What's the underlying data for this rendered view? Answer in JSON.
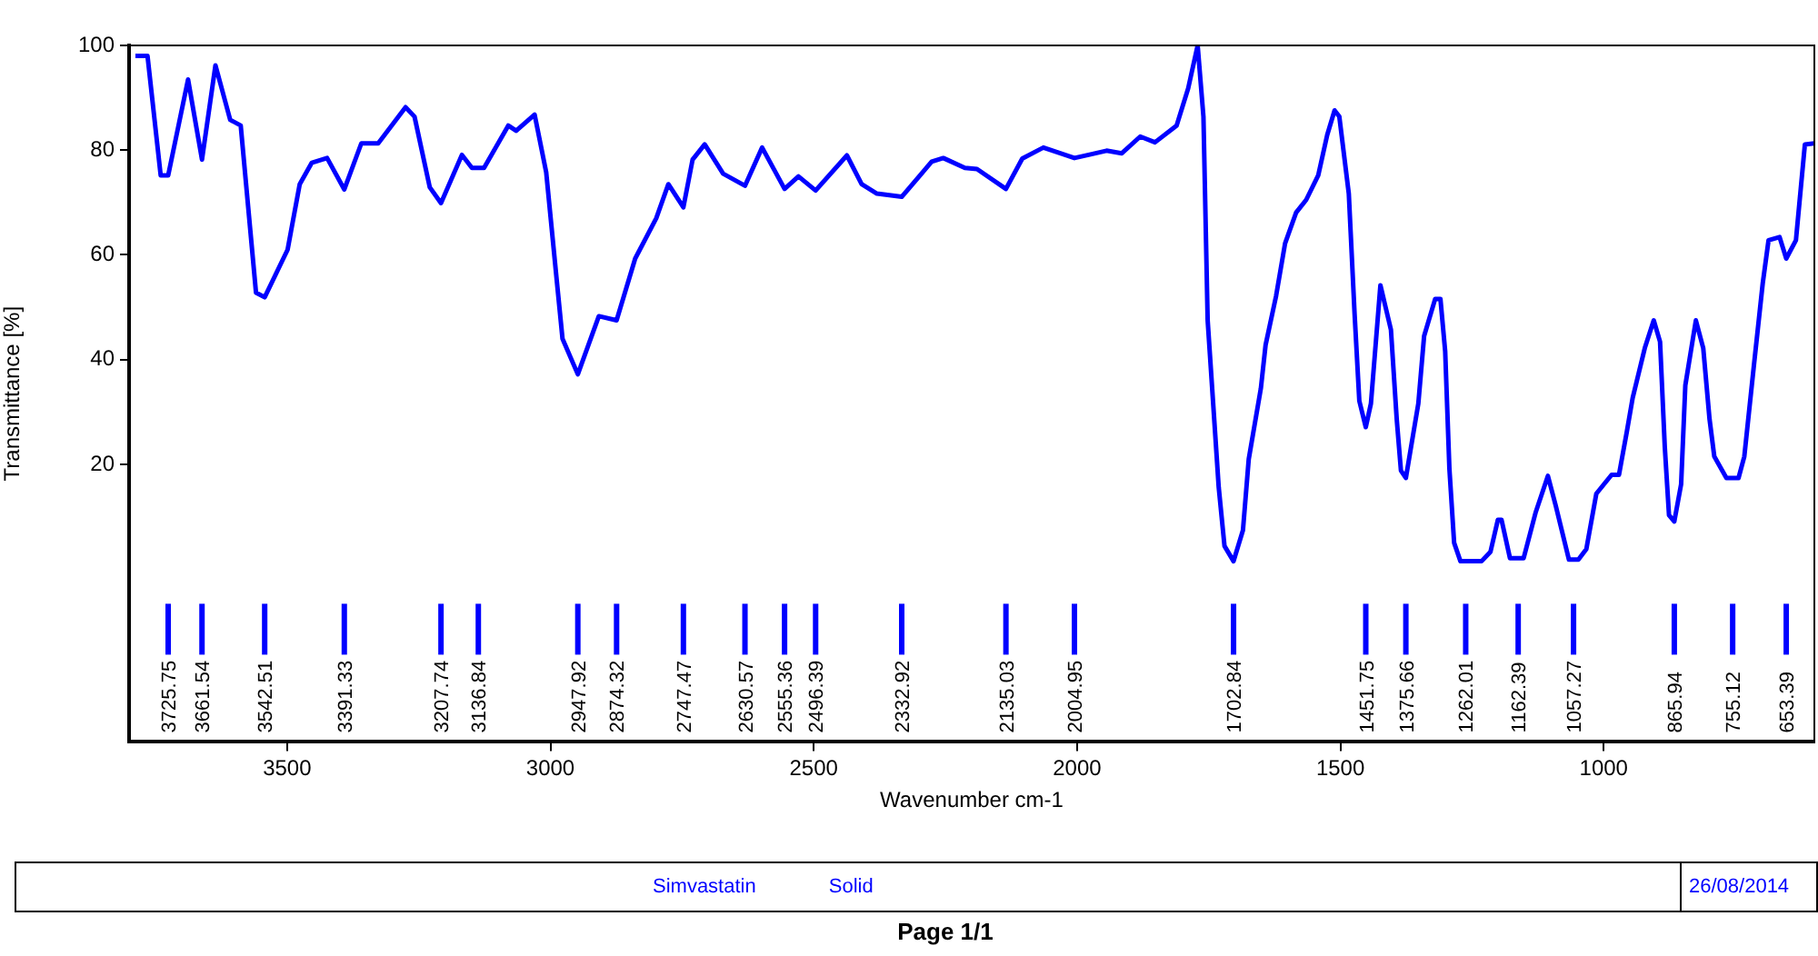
{
  "chart_data": {
    "type": "line",
    "xlabel": "Wavenumber cm-1",
    "ylabel": "Transmittance [%]",
    "xlim": [
      3800,
      600
    ],
    "ylim": [
      -33,
      100
    ],
    "xticks": [
      3500,
      3000,
      2500,
      2000,
      1500,
      1000
    ],
    "yticks": [
      20,
      40,
      60,
      80,
      100
    ],
    "grid": false,
    "legend": false,
    "marker": "none",
    "line_style": "solid",
    "series": [
      {
        "color": "#0000ff",
        "x": [
          3788,
          3765,
          3740,
          3725.75,
          3688,
          3661.54,
          3636,
          3608,
          3588,
          3559,
          3542.51,
          3499,
          3476,
          3453,
          3424,
          3391.33,
          3359,
          3327,
          3275,
          3258,
          3229,
          3207.74,
          3168,
          3149,
          3136.84,
          3126,
          3080,
          3065,
          3030,
          3008,
          2988,
          2977,
          2947.92,
          2908,
          2874.32,
          2839,
          2799,
          2776,
          2747.47,
          2730,
          2707,
          2672,
          2630.57,
          2598,
          2555.36,
          2529,
          2496.39,
          2437,
          2409,
          2380,
          2332.92,
          2276,
          2254,
          2213,
          2190,
          2135.03,
          2104,
          2064,
          2004.95,
          1978,
          1944,
          1915,
          1880,
          1852,
          1811,
          1789,
          1771,
          1760,
          1752,
          1731,
          1720,
          1702.84,
          1685,
          1674,
          1651,
          1642,
          1622,
          1605,
          1584,
          1565,
          1542,
          1525,
          1511,
          1502,
          1484,
          1473,
          1464,
          1451.75,
          1442,
          1424,
          1404,
          1393,
          1385,
          1375.66,
          1352,
          1341,
          1320,
          1310,
          1301,
          1293,
          1284,
          1272,
          1262.01,
          1232,
          1215,
          1201,
          1194,
          1178,
          1162.39,
          1152,
          1129,
          1106,
          1091,
          1066,
          1057.27,
          1048,
          1033,
          1014,
          985,
          971,
          956,
          945,
          922,
          905,
          893,
          884,
          876,
          865.94,
          853,
          845,
          825,
          811,
          799,
          790,
          767,
          755.12,
          744,
          733,
          715,
          698,
          687,
          666,
          653.39,
          635,
          618,
          600
        ],
        "values": [
          98,
          98,
          75.2,
          75.2,
          93.5,
          78.2,
          96.2,
          85.8,
          84.7,
          52.8,
          51.9,
          61,
          73.5,
          77.6,
          78.5,
          72.5,
          81.3,
          81.3,
          88.2,
          86.4,
          72.9,
          69.9,
          79.1,
          76.6,
          76.6,
          76.6,
          84.7,
          83.7,
          86.8,
          75.8,
          55.2,
          44,
          37.2,
          48.3,
          47.5,
          59.3,
          67,
          73.5,
          69.1,
          78.2,
          81.1,
          75.5,
          73.2,
          80.5,
          72.6,
          75,
          72.3,
          79,
          73.5,
          71.7,
          71.1,
          77.8,
          78.5,
          76.6,
          76.4,
          72.6,
          78.4,
          80.5,
          78.5,
          79.1,
          79.9,
          79.4,
          82.6,
          81.5,
          84.7,
          91.8,
          100,
          86.4,
          47.5,
          15.6,
          4.4,
          1.5,
          7.4,
          21,
          34.5,
          42.8,
          52.2,
          62.2,
          68.1,
          70.5,
          75.2,
          82.9,
          87.6,
          86.4,
          71.7,
          48.7,
          32.1,
          27.1,
          31.6,
          54.2,
          45.7,
          28.6,
          18.8,
          17.4,
          31.6,
          44.5,
          51.6,
          51.6,
          41.6,
          19.2,
          5,
          1.5,
          1.5,
          1.5,
          3.3,
          9.4,
          9.4,
          2.1,
          2.1,
          2.1,
          10.9,
          17.8,
          12.1,
          1.8,
          1.8,
          1.8,
          3.8,
          14.4,
          18,
          18,
          26.3,
          32.7,
          42.2,
          47.5,
          43.4,
          23.3,
          10.3,
          9.1,
          16.2,
          35.1,
          47.5,
          42.2,
          28.6,
          21.5,
          17.4,
          17.4,
          17.4,
          21.5,
          38.7,
          54.6,
          62.8,
          63.4,
          59.3,
          62.8,
          81.1,
          81.3
        ]
      }
    ],
    "annotations": [
      {
        "text": "3725.75",
        "x": 3725.75
      },
      {
        "text": "3661.54",
        "x": 3661.54
      },
      {
        "text": "3542.51",
        "x": 3542.51
      },
      {
        "text": "3391.33",
        "x": 3391.33
      },
      {
        "text": "3207.74",
        "x": 3207.74
      },
      {
        "text": "3136.84",
        "x": 3136.84
      },
      {
        "text": "2947.92",
        "x": 2947.92
      },
      {
        "text": "2874.32",
        "x": 2874.32
      },
      {
        "text": "2747.47",
        "x": 2747.47
      },
      {
        "text": "2630.57",
        "x": 2630.57
      },
      {
        "text": "2555.36",
        "x": 2555.36
      },
      {
        "text": "2496.39",
        "x": 2496.39
      },
      {
        "text": "2332.92",
        "x": 2332.92
      },
      {
        "text": "2135.03",
        "x": 2135.03
      },
      {
        "text": "2004.95",
        "x": 2004.95
      },
      {
        "text": "1702.84",
        "x": 1702.84
      },
      {
        "text": "1451.75",
        "x": 1451.75
      },
      {
        "text": "1375.66",
        "x": 1375.66
      },
      {
        "text": "1262.01",
        "x": 1262.01
      },
      {
        "text": "1162.39",
        "x": 1162.39
      },
      {
        "text": "1057.27",
        "x": 1057.27
      },
      {
        "text": "865.94",
        "x": 865.94
      },
      {
        "text": "755.12",
        "x": 755.12
      },
      {
        "text": "653.39",
        "x": 653.39
      },
      "Simvastatin",
      "Solid",
      "26/08/2014",
      "Page 1/1"
    ]
  }
}
